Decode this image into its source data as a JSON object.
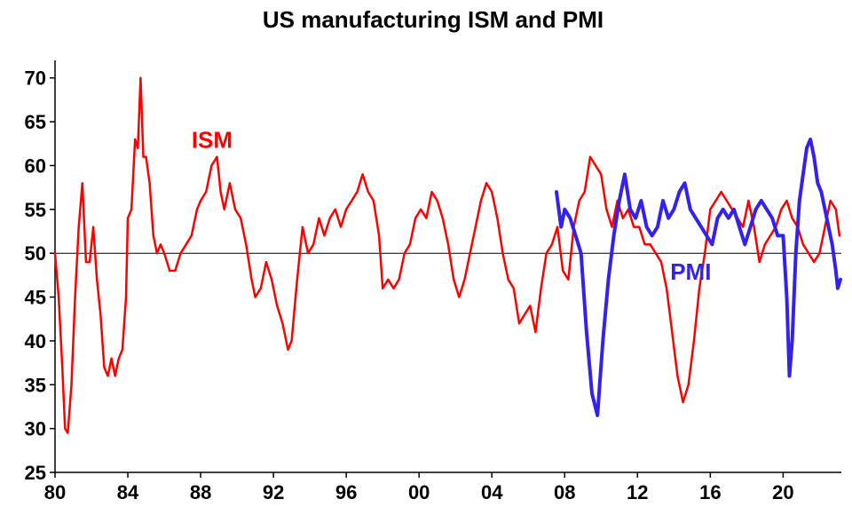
{
  "chart_data": {
    "type": "line",
    "title": "US manufacturing ISM and PMI",
    "xlabel": "",
    "ylabel": "",
    "xlim": [
      1980,
      2023.2
    ],
    "ylim": [
      25,
      72
    ],
    "reference_line": 50,
    "grid": false,
    "x_tick_labels": [
      {
        "x": 1980,
        "label": "80"
      },
      {
        "x": 1984,
        "label": "84"
      },
      {
        "x": 1988,
        "label": "88"
      },
      {
        "x": 1992,
        "label": "92"
      },
      {
        "x": 1996,
        "label": "96"
      },
      {
        "x": 2000,
        "label": "00"
      },
      {
        "x": 2004,
        "label": "04"
      },
      {
        "x": 2008,
        "label": "08"
      },
      {
        "x": 2012,
        "label": "12"
      },
      {
        "x": 2016,
        "label": "16"
      },
      {
        "x": 2020,
        "label": "20"
      }
    ],
    "y_ticks": [
      25,
      30,
      35,
      40,
      45,
      50,
      55,
      60,
      65,
      70
    ],
    "series": [
      {
        "name": "ISM",
        "color": "#ff0000",
        "label_pos": [
          1987.5,
          62
        ],
        "points": [
          [
            1980.0,
            50
          ],
          [
            1980.2,
            45
          ],
          [
            1980.4,
            37
          ],
          [
            1980.55,
            30
          ],
          [
            1980.7,
            29.5
          ],
          [
            1980.9,
            35
          ],
          [
            1981.1,
            45
          ],
          [
            1981.3,
            53
          ],
          [
            1981.5,
            58
          ],
          [
            1981.7,
            49
          ],
          [
            1981.9,
            49
          ],
          [
            1982.1,
            53
          ],
          [
            1982.3,
            47
          ],
          [
            1982.5,
            43
          ],
          [
            1982.7,
            37
          ],
          [
            1982.9,
            36
          ],
          [
            1983.1,
            38
          ],
          [
            1983.3,
            36
          ],
          [
            1983.5,
            38
          ],
          [
            1983.7,
            39
          ],
          [
            1983.9,
            45
          ],
          [
            1984.0,
            54
          ],
          [
            1984.2,
            55
          ],
          [
            1984.4,
            63
          ],
          [
            1984.55,
            62
          ],
          [
            1984.7,
            70
          ],
          [
            1984.85,
            61
          ],
          [
            1985.0,
            61
          ],
          [
            1985.2,
            58
          ],
          [
            1985.4,
            52
          ],
          [
            1985.6,
            50
          ],
          [
            1985.8,
            51
          ],
          [
            1986.0,
            50
          ],
          [
            1986.3,
            48
          ],
          [
            1986.6,
            48
          ],
          [
            1986.9,
            50
          ],
          [
            1987.2,
            51
          ],
          [
            1987.5,
            52
          ],
          [
            1987.8,
            55
          ],
          [
            1988.0,
            56
          ],
          [
            1988.3,
            57
          ],
          [
            1988.6,
            60
          ],
          [
            1988.9,
            61
          ],
          [
            1989.1,
            57
          ],
          [
            1989.3,
            55
          ],
          [
            1989.6,
            58
          ],
          [
            1989.9,
            55
          ],
          [
            1990.2,
            54
          ],
          [
            1990.5,
            51
          ],
          [
            1990.8,
            47
          ],
          [
            1991.0,
            45
          ],
          [
            1991.3,
            46
          ],
          [
            1991.6,
            49
          ],
          [
            1991.9,
            47
          ],
          [
            1992.2,
            44
          ],
          [
            1992.5,
            42
          ],
          [
            1992.8,
            39
          ],
          [
            1993.0,
            40
          ],
          [
            1993.3,
            47
          ],
          [
            1993.6,
            53
          ],
          [
            1993.9,
            50
          ],
          [
            1994.2,
            51
          ],
          [
            1994.5,
            54
          ],
          [
            1994.8,
            52
          ],
          [
            1995.1,
            54
          ],
          [
            1995.4,
            55
          ],
          [
            1995.7,
            53
          ],
          [
            1996.0,
            55
          ],
          [
            1996.3,
            56
          ],
          [
            1996.6,
            57
          ],
          [
            1996.9,
            59
          ],
          [
            1997.2,
            57
          ],
          [
            1997.5,
            56
          ],
          [
            1997.8,
            52
          ],
          [
            1998.0,
            46
          ],
          [
            1998.3,
            47
          ],
          [
            1998.6,
            46
          ],
          [
            1998.9,
            47
          ],
          [
            1999.2,
            50
          ],
          [
            1999.5,
            51
          ],
          [
            1999.8,
            54
          ],
          [
            2000.1,
            55
          ],
          [
            2000.4,
            54
          ],
          [
            2000.7,
            57
          ],
          [
            2001.0,
            56
          ],
          [
            2001.3,
            54
          ],
          [
            2001.6,
            51
          ],
          [
            2001.9,
            47
          ],
          [
            2002.2,
            45
          ],
          [
            2002.5,
            47
          ],
          [
            2002.8,
            50
          ],
          [
            2003.1,
            53
          ],
          [
            2003.4,
            56
          ],
          [
            2003.7,
            58
          ],
          [
            2004.0,
            57
          ],
          [
            2004.3,
            54
          ],
          [
            2004.6,
            50
          ],
          [
            2004.9,
            47
          ],
          [
            2005.2,
            46
          ],
          [
            2005.5,
            42
          ],
          [
            2005.8,
            43
          ],
          [
            2006.1,
            44
          ],
          [
            2006.4,
            41
          ],
          [
            2006.7,
            46
          ],
          [
            2007.0,
            50
          ],
          [
            2007.3,
            51
          ],
          [
            2007.6,
            53
          ],
          [
            2007.9,
            48
          ],
          [
            2008.2,
            47
          ],
          [
            2008.5,
            53
          ],
          [
            2008.8,
            56
          ],
          [
            2009.1,
            57
          ],
          [
            2009.4,
            61
          ],
          [
            2009.7,
            60
          ],
          [
            2010.0,
            59
          ],
          [
            2010.3,
            55
          ],
          [
            2010.6,
            53
          ],
          [
            2010.9,
            56
          ],
          [
            2011.2,
            54
          ],
          [
            2011.5,
            55
          ],
          [
            2011.8,
            53
          ],
          [
            2012.1,
            53
          ],
          [
            2012.4,
            51
          ],
          [
            2012.7,
            51
          ],
          [
            2013.0,
            50
          ],
          [
            2013.3,
            49
          ],
          [
            2013.6,
            46
          ],
          [
            2013.9,
            41
          ],
          [
            2014.2,
            36
          ],
          [
            2014.5,
            33
          ],
          [
            2014.8,
            35
          ],
          [
            2015.1,
            40
          ],
          [
            2015.4,
            46
          ],
          [
            2015.7,
            50
          ],
          [
            2016.0,
            55
          ],
          [
            2016.3,
            56
          ],
          [
            2016.6,
            57
          ],
          [
            2016.9,
            56
          ],
          [
            2017.2,
            55
          ],
          [
            2017.5,
            54
          ],
          [
            2017.8,
            53
          ],
          [
            2018.1,
            56
          ],
          [
            2018.4,
            53
          ],
          [
            2018.7,
            49
          ],
          [
            2019.0,
            51
          ],
          [
            2019.3,
            52
          ],
          [
            2019.6,
            53
          ],
          [
            2019.9,
            55
          ],
          [
            2020.2,
            56
          ],
          [
            2020.5,
            54
          ],
          [
            2020.8,
            53
          ],
          [
            2021.1,
            51
          ],
          [
            2021.4,
            50
          ],
          [
            2021.7,
            49
          ],
          [
            2022.0,
            50
          ],
          [
            2022.3,
            53
          ],
          [
            2022.6,
            56
          ],
          [
            2022.9,
            55
          ],
          [
            2023.1,
            52
          ]
        ]
      },
      {
        "name": "PMI",
        "color": "#3322ee",
        "label_pos": [
          2013.8,
          47
        ],
        "points": [
          [
            2007.55,
            57
          ],
          [
            2007.8,
            53
          ],
          [
            2008.0,
            55
          ],
          [
            2008.3,
            54
          ],
          [
            2008.6,
            52
          ],
          [
            2008.9,
            50
          ],
          [
            2009.2,
            41
          ],
          [
            2009.5,
            34
          ],
          [
            2009.8,
            31.5
          ],
          [
            2010.1,
            40
          ],
          [
            2010.4,
            47
          ],
          [
            2010.7,
            52
          ],
          [
            2011.0,
            56
          ],
          [
            2011.3,
            59
          ],
          [
            2011.6,
            55
          ],
          [
            2011.9,
            54
          ],
          [
            2012.2,
            56
          ],
          [
            2012.5,
            53
          ],
          [
            2012.8,
            52
          ],
          [
            2013.1,
            53
          ],
          [
            2013.4,
            56
          ],
          [
            2013.7,
            54
          ],
          [
            2014.0,
            55
          ],
          [
            2014.3,
            57
          ],
          [
            2014.6,
            58
          ],
          [
            2014.9,
            55
          ],
          [
            2015.2,
            54
          ],
          [
            2015.5,
            53
          ],
          [
            2015.8,
            52
          ],
          [
            2016.1,
            51
          ],
          [
            2016.4,
            54
          ],
          [
            2016.7,
            55
          ],
          [
            2017.0,
            54
          ],
          [
            2017.3,
            55
          ],
          [
            2017.6,
            53
          ],
          [
            2017.9,
            51
          ],
          [
            2018.2,
            53
          ],
          [
            2018.5,
            55
          ],
          [
            2018.8,
            56
          ],
          [
            2019.1,
            55
          ],
          [
            2019.4,
            54
          ],
          [
            2019.7,
            52
          ],
          [
            2020.0,
            52
          ],
          [
            2020.2,
            45
          ],
          [
            2020.35,
            36
          ],
          [
            2020.5,
            40
          ],
          [
            2020.7,
            50
          ],
          [
            2020.9,
            56
          ],
          [
            2021.1,
            59
          ],
          [
            2021.3,
            62
          ],
          [
            2021.5,
            63
          ],
          [
            2021.7,
            61
          ],
          [
            2021.9,
            58
          ],
          [
            2022.1,
            57
          ],
          [
            2022.3,
            55
          ],
          [
            2022.5,
            53
          ],
          [
            2022.7,
            51
          ],
          [
            2022.9,
            48
          ],
          [
            2023.0,
            46
          ],
          [
            2023.15,
            47
          ]
        ]
      }
    ]
  }
}
